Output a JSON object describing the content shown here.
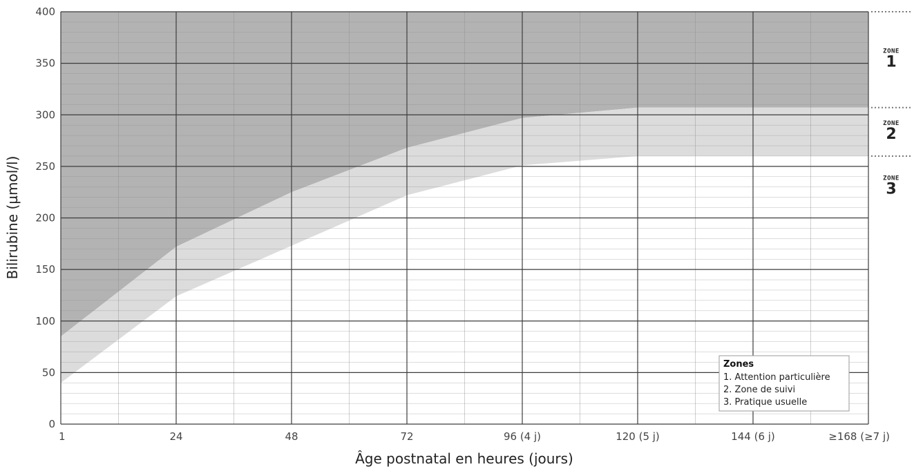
{
  "chart_data": {
    "type": "area",
    "xlabel": "Âge postnatal en heures (jours)",
    "ylabel": "Bilirubine (µmol/l)",
    "xlim": [
      0,
      168
    ],
    "ylim": [
      0,
      400
    ],
    "x_ticks": [
      {
        "x": 0,
        "label": "1"
      },
      {
        "x": 24,
        "label": "24"
      },
      {
        "x": 48,
        "label": "48"
      },
      {
        "x": 72,
        "label": "72"
      },
      {
        "x": 96,
        "label": "96 (4 j)"
      },
      {
        "x": 120,
        "label": "120 (5 j)"
      },
      {
        "x": 144,
        "label": "144 (6 j)"
      },
      {
        "x": 168,
        "label": "≥168 (≥7 j)"
      }
    ],
    "y_ticks": [
      0,
      50,
      100,
      150,
      200,
      250,
      300,
      350,
      400
    ],
    "grid": true,
    "x": [
      0,
      24,
      48,
      72,
      96,
      120,
      168
    ],
    "series": [
      {
        "values": [
          85,
          172,
          225,
          268,
          297,
          307,
          307
        ],
        "color": "#c2c2c2"
      },
      {
        "values": [
          40,
          124,
          173,
          222,
          251,
          260,
          260
        ],
        "color": "#dcdcdc"
      }
    ],
    "zones": [
      {
        "word": "ZONE",
        "number": "1"
      },
      {
        "word": "ZONE",
        "number": "2"
      },
      {
        "word": "ZONE",
        "number": "3"
      }
    ],
    "legend": {
      "title": "Zones",
      "items": [
        "1. Attention particulière",
        "2. Zone de suivi",
        "3. Pratique usuelle"
      ],
      "position": "bottom-right"
    }
  }
}
